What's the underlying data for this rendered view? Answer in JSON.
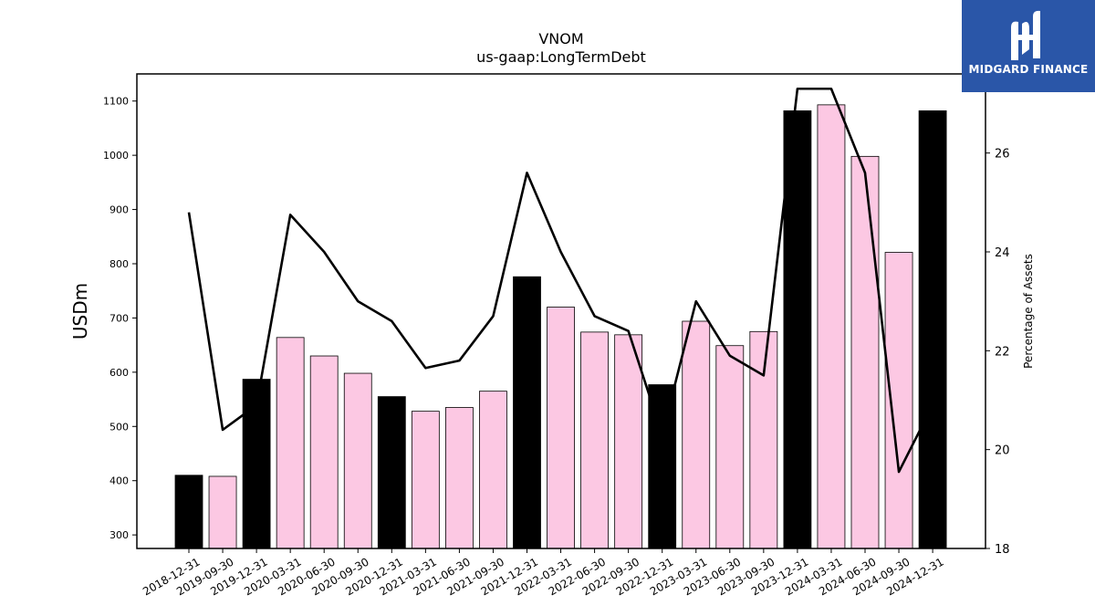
{
  "logo": {
    "text": "MIDGARD FINANCE",
    "bg_color": "#2a56a8"
  },
  "chart_data": {
    "type": "bar",
    "title": "VNOM",
    "subtitle": "us-gaap:LongTermDebt",
    "ylabel": "USDm",
    "y2label": "Percentage of Assets",
    "ylim": [
      275,
      1150
    ],
    "y2lim": [
      18,
      27.6
    ],
    "yticks": [
      300,
      400,
      500,
      600,
      700,
      800,
      900,
      1000,
      1100
    ],
    "y2ticks": [
      18,
      20,
      22,
      24,
      26
    ],
    "categories": [
      "2018-12-31",
      "2019-09-30",
      "2019-12-31",
      "2020-03-31",
      "2020-06-30",
      "2020-09-30",
      "2020-12-31",
      "2021-03-31",
      "2021-06-30",
      "2021-09-30",
      "2021-12-31",
      "2022-03-31",
      "2022-06-30",
      "2022-09-30",
      "2022-12-31",
      "2023-03-31",
      "2023-06-30",
      "2023-09-30",
      "2023-12-31",
      "2024-03-31",
      "2024-06-30",
      "2024-09-30",
      "2024-12-31"
    ],
    "series": [
      {
        "type": "bar",
        "values": [
          410,
          408,
          587,
          664,
          630,
          598,
          555,
          528,
          535,
          565,
          776,
          720,
          674,
          669,
          577,
          694,
          649,
          675,
          1082,
          1093,
          998,
          821,
          1082
        ],
        "annual": [
          true,
          false,
          true,
          false,
          false,
          false,
          true,
          false,
          false,
          false,
          true,
          false,
          false,
          false,
          true,
          false,
          false,
          false,
          true,
          false,
          false,
          false,
          true
        ]
      },
      {
        "type": "line",
        "axis": "right",
        "values": [
          24.8,
          20.4,
          20.9,
          24.75,
          24.0,
          23.0,
          22.6,
          21.65,
          21.8,
          22.7,
          25.6,
          24.0,
          22.7,
          22.4,
          20.3,
          23.0,
          21.9,
          21.5,
          27.3,
          27.3,
          25.6,
          19.55,
          20.9
        ]
      }
    ],
    "colors": {
      "annual_bar": "#000000",
      "quarter_bar": "#fcc8e3",
      "line": "#000000"
    }
  }
}
